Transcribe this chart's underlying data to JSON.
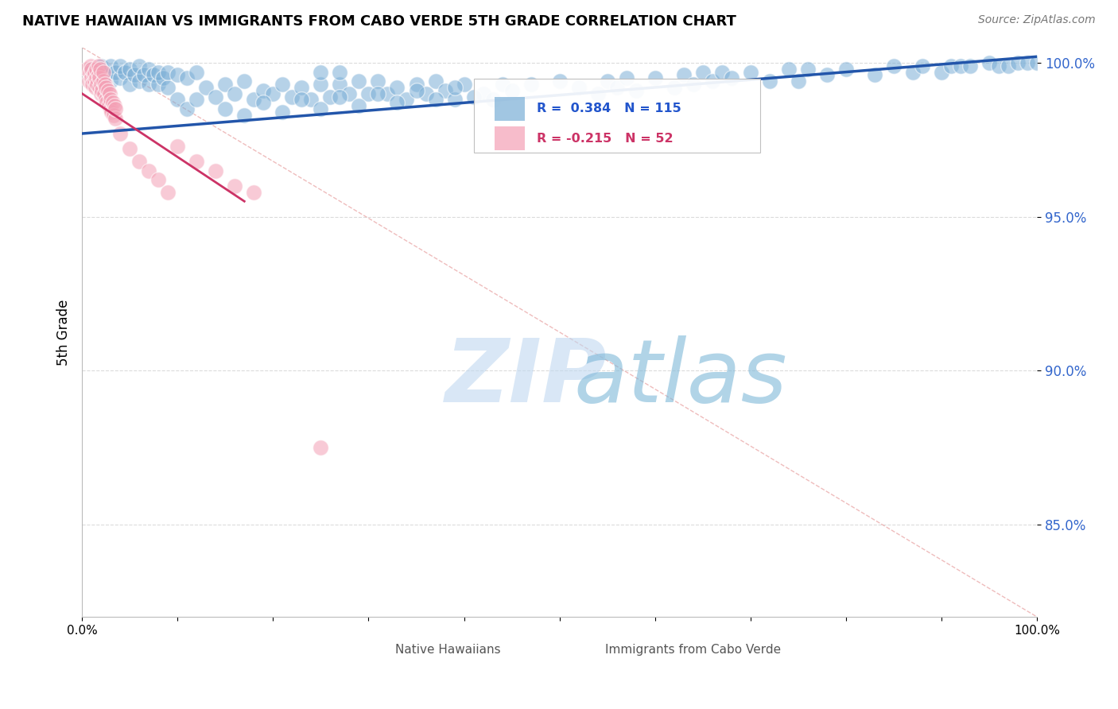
{
  "title": "NATIVE HAWAIIAN VS IMMIGRANTS FROM CABO VERDE 5TH GRADE CORRELATION CHART",
  "source": "Source: ZipAtlas.com",
  "ylabel": "5th Grade",
  "xlim": [
    0.0,
    1.0
  ],
  "ylim": [
    0.82,
    1.005
  ],
  "yticks": [
    0.85,
    0.9,
    0.95,
    1.0
  ],
  "ytick_labels": [
    "85.0%",
    "90.0%",
    "95.0%",
    "100.0%"
  ],
  "blue_color": "#7aaed6",
  "pink_color": "#f4a0b5",
  "blue_trend_color": "#2255AA",
  "pink_trend_color": "#CC3366",
  "blue_R": 0.384,
  "blue_N": 115,
  "pink_R": -0.215,
  "pink_N": 52,
  "blue_trend": [
    0.0,
    0.977,
    1.0,
    1.002
  ],
  "pink_trend": [
    0.0,
    0.99,
    0.17,
    0.955
  ],
  "diag_line": [
    0.0,
    1.005,
    1.0,
    0.82
  ],
  "diag_color": "#E8A0A0",
  "watermark_zip": "ZIP",
  "watermark_atlas": "atlas",
  "watermark_color_zip": "#C0D8F0",
  "watermark_color_atlas": "#7EB8D8",
  "background_color": "#FFFFFF",
  "blue_scatter_x": [
    0.01,
    0.02,
    0.02,
    0.025,
    0.03,
    0.03,
    0.035,
    0.04,
    0.04,
    0.045,
    0.05,
    0.05,
    0.055,
    0.06,
    0.06,
    0.065,
    0.07,
    0.07,
    0.075,
    0.08,
    0.08,
    0.085,
    0.09,
    0.09,
    0.1,
    0.1,
    0.11,
    0.11,
    0.12,
    0.12,
    0.13,
    0.14,
    0.15,
    0.16,
    0.17,
    0.18,
    0.19,
    0.2,
    0.21,
    0.22,
    0.23,
    0.24,
    0.25,
    0.25,
    0.26,
    0.27,
    0.27,
    0.28,
    0.29,
    0.3,
    0.31,
    0.32,
    0.33,
    0.34,
    0.35,
    0.36,
    0.37,
    0.38,
    0.39,
    0.4,
    0.42,
    0.43,
    0.44,
    0.45,
    0.47,
    0.5,
    0.52,
    0.54,
    0.55,
    0.56,
    0.57,
    0.58,
    0.6,
    0.62,
    0.63,
    0.64,
    0.65,
    0.66,
    0.67,
    0.68,
    0.7,
    0.72,
    0.74,
    0.75,
    0.76,
    0.78,
    0.8,
    0.83,
    0.85,
    0.87,
    0.88,
    0.9,
    0.91,
    0.92,
    0.93,
    0.95,
    0.96,
    0.97,
    0.98,
    0.99,
    1.0,
    0.15,
    0.17,
    0.19,
    0.21,
    0.23,
    0.25,
    0.27,
    0.29,
    0.31,
    0.33,
    0.35,
    0.37,
    0.39,
    0.41
  ],
  "blue_scatter_y": [
    0.998,
    0.992,
    0.999,
    0.996,
    0.994,
    0.999,
    0.997,
    0.995,
    0.999,
    0.997,
    0.993,
    0.998,
    0.996,
    0.994,
    0.999,
    0.996,
    0.993,
    0.998,
    0.996,
    0.993,
    0.997,
    0.995,
    0.992,
    0.997,
    0.988,
    0.996,
    0.985,
    0.995,
    0.988,
    0.997,
    0.992,
    0.989,
    0.993,
    0.99,
    0.994,
    0.988,
    0.991,
    0.99,
    0.993,
    0.989,
    0.992,
    0.988,
    0.993,
    0.997,
    0.989,
    0.993,
    0.997,
    0.99,
    0.994,
    0.99,
    0.994,
    0.99,
    0.992,
    0.988,
    0.993,
    0.99,
    0.994,
    0.991,
    0.988,
    0.993,
    0.99,
    0.988,
    0.993,
    0.991,
    0.993,
    0.994,
    0.992,
    0.99,
    0.994,
    0.992,
    0.995,
    0.991,
    0.995,
    0.992,
    0.996,
    0.993,
    0.997,
    0.994,
    0.997,
    0.995,
    0.997,
    0.994,
    0.998,
    0.994,
    0.998,
    0.996,
    0.998,
    0.996,
    0.999,
    0.997,
    0.999,
    0.997,
    0.999,
    0.999,
    0.999,
    1.0,
    0.999,
    0.999,
    1.0,
    1.0,
    1.0,
    0.985,
    0.983,
    0.987,
    0.984,
    0.988,
    0.985,
    0.989,
    0.986,
    0.99,
    0.987,
    0.991,
    0.988,
    0.992,
    0.989
  ],
  "pink_scatter_x": [
    0.005,
    0.007,
    0.008,
    0.009,
    0.01,
    0.01,
    0.011,
    0.012,
    0.013,
    0.013,
    0.014,
    0.015,
    0.015,
    0.016,
    0.017,
    0.017,
    0.018,
    0.018,
    0.019,
    0.02,
    0.02,
    0.021,
    0.022,
    0.022,
    0.023,
    0.024,
    0.025,
    0.025,
    0.026,
    0.027,
    0.028,
    0.029,
    0.03,
    0.03,
    0.031,
    0.032,
    0.033,
    0.034,
    0.035,
    0.035,
    0.04,
    0.05,
    0.06,
    0.07,
    0.08,
    0.09,
    0.1,
    0.12,
    0.14,
    0.16,
    0.18,
    0.25
  ],
  "pink_scatter_y": [
    0.998,
    0.994,
    0.997,
    0.999,
    0.995,
    0.998,
    0.993,
    0.996,
    0.994,
    0.997,
    0.992,
    0.995,
    0.998,
    0.993,
    0.996,
    0.999,
    0.992,
    0.995,
    0.998,
    0.99,
    0.993,
    0.991,
    0.994,
    0.997,
    0.99,
    0.993,
    0.988,
    0.992,
    0.987,
    0.991,
    0.986,
    0.99,
    0.985,
    0.988,
    0.984,
    0.987,
    0.983,
    0.986,
    0.982,
    0.985,
    0.977,
    0.972,
    0.968,
    0.965,
    0.962,
    0.958,
    0.973,
    0.968,
    0.965,
    0.96,
    0.958,
    0.875
  ]
}
